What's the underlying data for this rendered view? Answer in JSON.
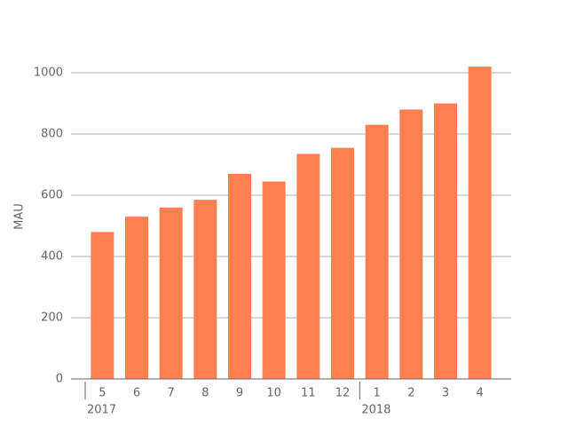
{
  "chart_data": {
    "type": "bar",
    "ylabel": "MAU",
    "categories": [
      "5",
      "6",
      "7",
      "8",
      "9",
      "10",
      "11",
      "12",
      "1",
      "2",
      "3",
      "4"
    ],
    "x_groups": [
      {
        "label": "2017",
        "count": 8
      },
      {
        "label": "2018",
        "count": 4
      }
    ],
    "values": [
      480,
      530,
      560,
      585,
      670,
      645,
      735,
      755,
      830,
      880,
      900,
      1020
    ],
    "color": "#ff7f50",
    "ylim": [
      0,
      1100
    ],
    "yticks": [
      0,
      200,
      400,
      600,
      800,
      1000
    ],
    "grid": true
  }
}
